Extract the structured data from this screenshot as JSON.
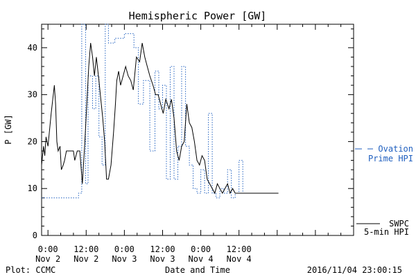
{
  "chart_data": {
    "type": "line",
    "title": "Hemispheric Power [GW]",
    "xlabel": "Date and Time",
    "ylabel": "P [GW]",
    "ylim": [
      0,
      45
    ],
    "yticks": [
      0,
      10,
      20,
      30,
      40
    ],
    "xlim_hours": [
      -1,
      48
    ],
    "xticks": [
      {
        "hour": 0,
        "time": "0:00",
        "date": "Nov 2"
      },
      {
        "hour": 6,
        "time": "12:00",
        "date": "Nov 2"
      },
      {
        "hour": 12,
        "time": "0:00",
        "date": "Nov 3"
      },
      {
        "hour": 18,
        "time": "12:00",
        "date": "Nov 3"
      },
      {
        "hour": 24,
        "time": "0:00",
        "date": "Nov 4"
      },
      {
        "hour": 30,
        "time": "12:00",
        "date": "Nov 4"
      }
    ],
    "grid": false,
    "series": [
      {
        "name": "SWPC 5-min HPI",
        "legend": [
          "SWPC",
          "5-min HPI"
        ],
        "color": "#000000",
        "style": "solid",
        "x": [
          -1.0,
          -0.7,
          -0.5,
          -0.3,
          0.0,
          0.5,
          1.0,
          1.2,
          1.4,
          1.6,
          1.9,
          2.1,
          2.4,
          2.6,
          2.9,
          3.2,
          3.6,
          4.0,
          4.2,
          4.6,
          5.0,
          5.4,
          5.8,
          6.1,
          6.4,
          6.7,
          7.0,
          7.3,
          7.6,
          8.0,
          8.3,
          8.6,
          8.9,
          9.2,
          9.5,
          9.9,
          10.3,
          10.6,
          10.8,
          11.1,
          11.4,
          11.8,
          12.2,
          12.6,
          13.0,
          13.4,
          13.9,
          14.4,
          14.8,
          15.2,
          15.6,
          16.0,
          16.5,
          16.9,
          17.3,
          17.7,
          18.1,
          18.5,
          19.0,
          19.4,
          19.8,
          20.2,
          20.6,
          21.0,
          21.4,
          21.8,
          22.2,
          22.6,
          23.0,
          23.4,
          23.8,
          24.2,
          24.6,
          25.0,
          25.4,
          25.8,
          26.2,
          26.6,
          27.0,
          27.4,
          27.8,
          28.2,
          28.6,
          29.0,
          29.4,
          29.8,
          30.2,
          30.6,
          31.0,
          31.4,
          31.8,
          32.2,
          32.6,
          33.0,
          33.4,
          33.8,
          34.2,
          34.6,
          35.0,
          35.4,
          35.8,
          36.2
        ],
        "y": [
          15,
          19,
          17,
          21,
          19,
          26,
          32,
          28,
          20,
          18,
          19,
          14,
          15,
          16,
          18,
          18,
          18,
          18,
          16,
          18,
          18,
          11,
          20,
          28,
          36,
          41,
          38,
          34,
          38,
          33,
          29,
          25,
          20,
          12,
          12,
          15,
          22,
          28,
          33,
          35,
          32,
          34,
          36,
          34,
          33,
          31,
          38,
          37,
          41,
          38,
          36,
          34,
          32,
          30,
          30,
          28,
          26,
          29,
          27,
          29,
          25,
          18,
          16,
          19,
          20,
          28,
          24,
          23,
          20,
          16,
          15,
          17,
          16,
          12,
          11,
          10,
          9,
          11,
          10,
          9,
          10,
          11,
          9,
          10,
          9,
          9,
          9,
          9,
          9,
          9,
          9,
          9,
          9,
          9,
          9,
          9,
          9,
          9,
          9,
          9,
          9,
          9
        ]
      },
      {
        "name": "Ovation Prime HPI",
        "legend": [
          "Ovation",
          "Prime HPI"
        ],
        "color": "#1f5fbf",
        "style": "dotted",
        "x": [
          -1.0,
          4.8,
          4.8,
          5.3,
          5.3,
          5.9,
          5.9,
          6.3,
          6.3,
          7.0,
          7.0,
          7.5,
          7.5,
          8.0,
          8.0,
          8.5,
          8.5,
          9.0,
          9.0,
          9.5,
          9.5,
          10.5,
          10.5,
          12.0,
          12.0,
          13.5,
          13.5,
          14.2,
          14.2,
          15.0,
          15.0,
          16.0,
          16.0,
          16.8,
          16.8,
          17.4,
          17.4,
          18.0,
          18.0,
          18.6,
          18.6,
          19.2,
          19.2,
          19.8,
          19.8,
          20.4,
          20.4,
          21.0,
          21.0,
          21.6,
          21.6,
          22.2,
          22.2,
          22.8,
          22.8,
          23.4,
          23.4,
          24.0,
          24.0,
          24.6,
          24.6,
          25.2,
          25.2,
          25.8,
          25.8,
          26.4,
          26.4,
          27.0,
          27.0,
          27.6,
          27.6,
          28.2,
          28.2,
          28.8,
          28.8,
          29.4,
          29.4,
          30.0,
          30.0,
          30.6,
          30.6,
          31.2,
          31.2,
          31.8,
          31.8,
          32.4,
          32.4,
          33.0,
          33.0,
          33.6,
          33.6,
          34.2,
          34.2,
          34.8,
          34.8,
          35.4,
          35.4,
          36.2
        ],
        "y": [
          8,
          8,
          9,
          9,
          45,
          45,
          11,
          11,
          34,
          34,
          27,
          27,
          34,
          34,
          21,
          21,
          15,
          15,
          45,
          45,
          41,
          41,
          42,
          42,
          43,
          43,
          40,
          40,
          28,
          28,
          33,
          33,
          18,
          18,
          35,
          35,
          27,
          27,
          32,
          32,
          12,
          12,
          36,
          36,
          12,
          12,
          19,
          19,
          36,
          36,
          19,
          19,
          15,
          15,
          10,
          10,
          9,
          9,
          14,
          14,
          9,
          9,
          26,
          26,
          9,
          9,
          8,
          8,
          10,
          10,
          9,
          9,
          14,
          14,
          8,
          8,
          9,
          9,
          16,
          16,
          9,
          9,
          9,
          9,
          9,
          9,
          9,
          9,
          9,
          9,
          9,
          9,
          9,
          9,
          9,
          9,
          9,
          9
        ]
      }
    ],
    "footer": {
      "left": "Plot: CCMC",
      "right": "2016/11/04 23:00:15"
    }
  }
}
